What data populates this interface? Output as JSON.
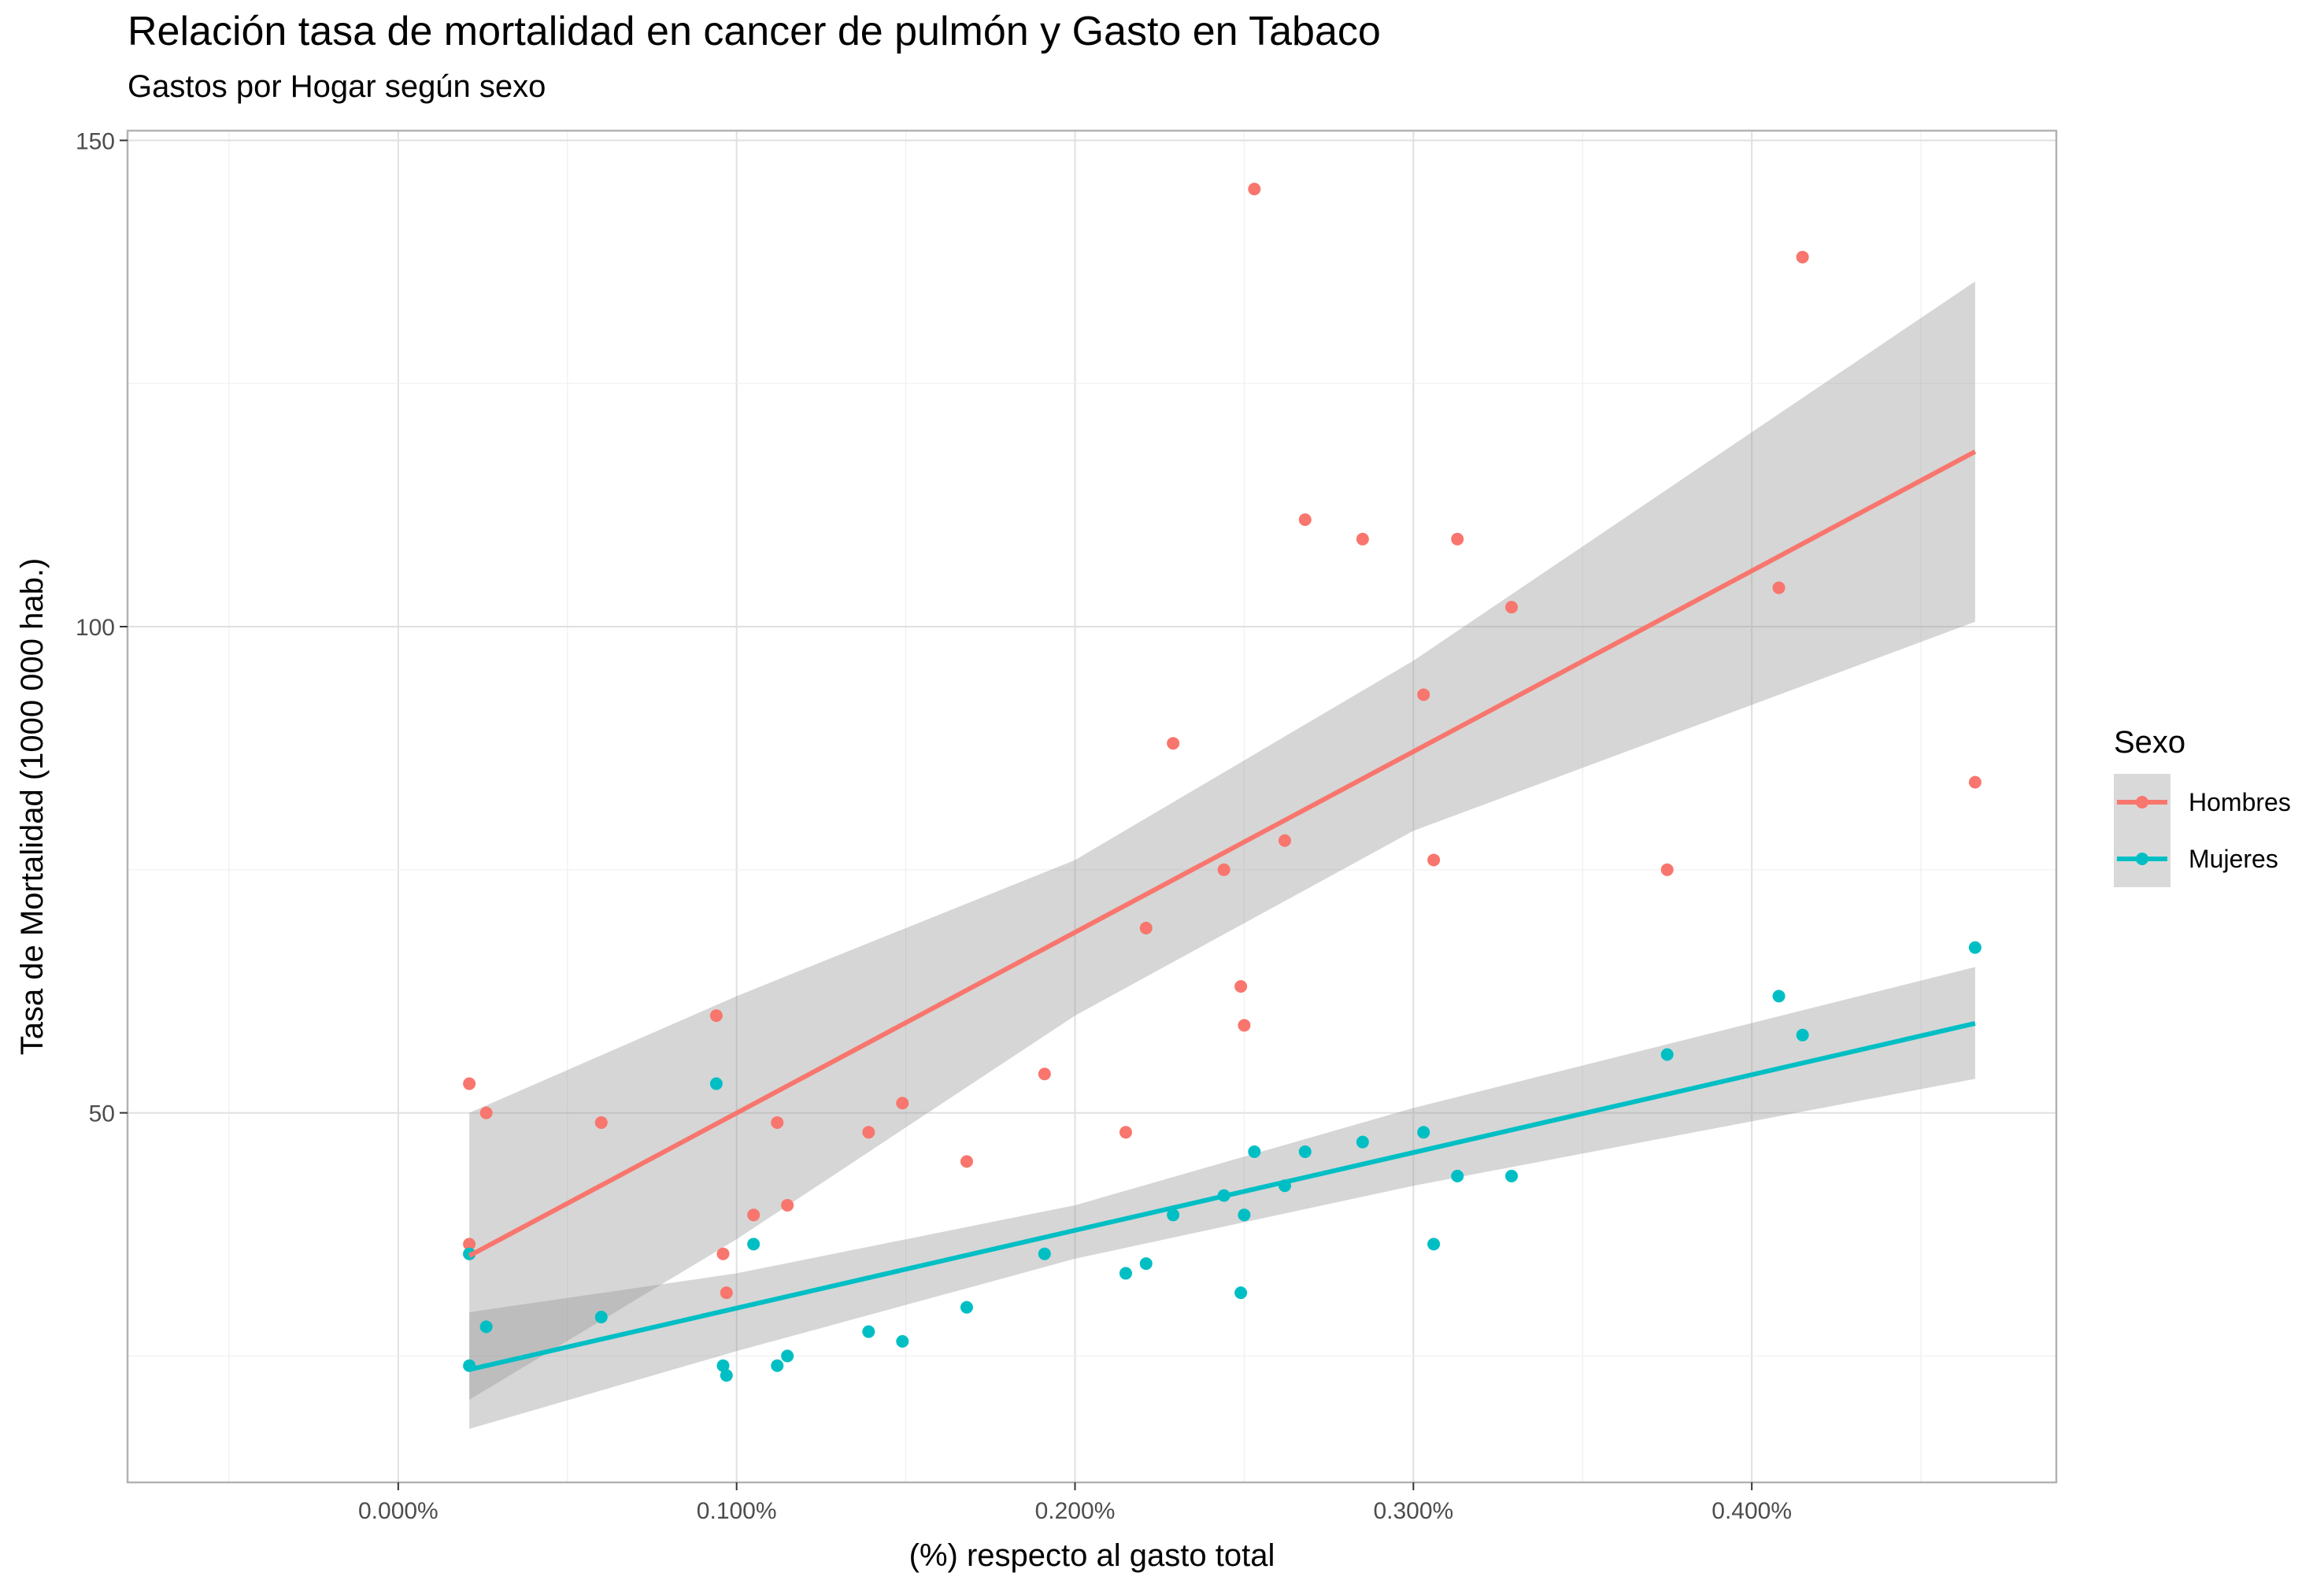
{
  "chart_data": {
    "type": "scatter",
    "title": "Relación tasa de mortalidad en cancer de pulmón y Gasto en Tabaco",
    "subtitle": "Gastos por Hogar según sexo",
    "xlabel": "(%) respecto al gasto total",
    "ylabel": "Tasa de Mortalidad   (1000 000 hab.)",
    "xlim": [
      -0.0008,
      0.0049
    ],
    "ylim": [
      12,
      151
    ],
    "x_ticks": [
      0.0,
      0.001,
      0.002,
      0.003,
      0.004
    ],
    "x_tick_labels": [
      "0.000%",
      "0.100%",
      "0.200%",
      "0.300%",
      "0.400%"
    ],
    "y_ticks": [
      50,
      100,
      150
    ],
    "y_tick_labels": [
      "50",
      "100",
      "150"
    ],
    "grid": true,
    "legend": {
      "title": "Sexo",
      "position": "right"
    },
    "series": [
      {
        "name": "Hombres",
        "color": "#F8766D",
        "points": [
          [
            0.00021,
            53.0
          ],
          [
            0.00021,
            36.5
          ],
          [
            0.00021,
            35.5
          ],
          [
            0.00026,
            50.0
          ],
          [
            0.0006,
            49.0
          ],
          [
            0.00094,
            60.0
          ],
          [
            0.00096,
            35.5
          ],
          [
            0.00097,
            31.5
          ],
          [
            0.00105,
            39.5
          ],
          [
            0.00112,
            49.0
          ],
          [
            0.00115,
            40.5
          ],
          [
            0.00139,
            48.0
          ],
          [
            0.00149,
            51.0
          ],
          [
            0.00168,
            45.0
          ],
          [
            0.00191,
            54.0
          ],
          [
            0.00215,
            48.0
          ],
          [
            0.00221,
            69.0
          ],
          [
            0.00229,
            88.0
          ],
          [
            0.00244,
            75.0
          ],
          [
            0.00249,
            63.0
          ],
          [
            0.0025,
            59.0
          ],
          [
            0.00253,
            145.0
          ],
          [
            0.00262,
            78.0
          ],
          [
            0.00268,
            111.0
          ],
          [
            0.00285,
            109.0
          ],
          [
            0.00303,
            93.0
          ],
          [
            0.00306,
            76.0
          ],
          [
            0.00313,
            109.0
          ],
          [
            0.00329,
            102.0
          ],
          [
            0.00375,
            75.0
          ],
          [
            0.00408,
            104.0
          ],
          [
            0.00415,
            138.0
          ],
          [
            0.00466,
            84.0
          ]
        ],
        "fit": {
          "x": [
            0.00021,
            0.00466
          ],
          "y": [
            35.3,
            118.0
          ],
          "band": {
            "x": [
              0.00021,
              0.001,
              0.002,
              0.003,
              0.00466
            ],
            "lower": [
              20.5,
              37.0,
              60.0,
              79.0,
              100.5
            ],
            "upper": [
              50.0,
              62.0,
              76.0,
              96.5,
              135.5
            ]
          }
        }
      },
      {
        "name": "Mujeres",
        "color": "#00BFC4",
        "points": [
          [
            0.00021,
            35.5
          ],
          [
            0.00021,
            24.0
          ],
          [
            0.00026,
            28.0
          ],
          [
            0.0006,
            29.0
          ],
          [
            0.00094,
            53.0
          ],
          [
            0.00096,
            24.0
          ],
          [
            0.00097,
            23.0
          ],
          [
            0.00105,
            36.5
          ],
          [
            0.00112,
            24.0
          ],
          [
            0.00115,
            25.0
          ],
          [
            0.00139,
            27.5
          ],
          [
            0.00149,
            26.5
          ],
          [
            0.00168,
            30.0
          ],
          [
            0.00191,
            35.5
          ],
          [
            0.00215,
            33.5
          ],
          [
            0.00221,
            34.5
          ],
          [
            0.00229,
            39.5
          ],
          [
            0.00244,
            41.5
          ],
          [
            0.00249,
            31.5
          ],
          [
            0.0025,
            39.5
          ],
          [
            0.00253,
            46.0
          ],
          [
            0.00262,
            42.5
          ],
          [
            0.00268,
            46.0
          ],
          [
            0.00285,
            47.0
          ],
          [
            0.00303,
            48.0
          ],
          [
            0.00306,
            36.5
          ],
          [
            0.00313,
            43.5
          ],
          [
            0.00329,
            43.5
          ],
          [
            0.00375,
            56.0
          ],
          [
            0.00408,
            62.0
          ],
          [
            0.00415,
            58.0
          ],
          [
            0.00466,
            67.0
          ]
        ],
        "fit": {
          "x": [
            0.00021,
            0.00466
          ],
          "y": [
            23.6,
            59.2
          ],
          "band": {
            "x": [
              0.00021,
              0.001,
              0.002,
              0.003,
              0.00466
            ],
            "lower": [
              17.5,
              25.5,
              35.0,
              42.5,
              53.5
            ],
            "upper": [
              29.5,
              33.5,
              40.5,
              50.5,
              65.0
            ]
          }
        }
      }
    ]
  }
}
